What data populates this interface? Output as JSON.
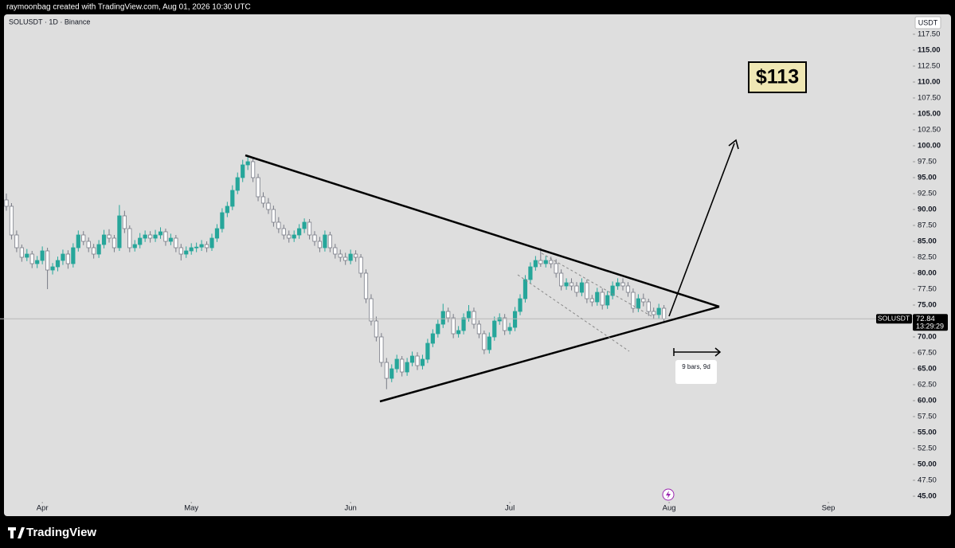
{
  "chart_data": {
    "type": "candlestick",
    "header": "raymoonbag created with TradingView.com, Aug 01, 2026 10:30 UTC",
    "title": "SOLUSDT · 1D · Binance",
    "currency": "USDT",
    "price_tag_symbol": "SOLUSDT",
    "countdown": "13:29:29",
    "target_label": "$113",
    "range_label": "9 bars, 9d",
    "brand": "TradingView",
    "colors": {
      "up": "#26a69a",
      "down": "#ffffff",
      "down_border": "#787b86"
    },
    "xlim": [
      -1.24,
      176.43
    ],
    "xticks": [
      {
        "value": 7,
        "label": "Apr"
      },
      {
        "value": 36,
        "label": "May"
      },
      {
        "value": 67,
        "label": "Jun"
      },
      {
        "value": 98,
        "label": "Jul"
      },
      {
        "value": 129,
        "label": "Aug"
      },
      {
        "value": 160,
        "label": "Sep"
      }
    ],
    "ylim": [
      44.125,
      120.625
    ],
    "yticks": [
      {
        "value": 117.5,
        "label": "117.50"
      },
      {
        "value": 115,
        "label": "115.00"
      },
      {
        "value": 112.5,
        "label": "112.50"
      },
      {
        "value": 110,
        "label": "110.00"
      },
      {
        "value": 107.5,
        "label": "107.50"
      },
      {
        "value": 105,
        "label": "105.00"
      },
      {
        "value": 102.5,
        "label": "102.50"
      },
      {
        "value": 100,
        "label": "100.00"
      },
      {
        "value": 97.5,
        "label": "97.50"
      },
      {
        "value": 95,
        "label": "95.00"
      },
      {
        "value": 92.5,
        "label": "92.50"
      },
      {
        "value": 90,
        "label": "90.00"
      },
      {
        "value": 87.5,
        "label": "87.50"
      },
      {
        "value": 85,
        "label": "85.00"
      },
      {
        "value": 82.5,
        "label": "82.50"
      },
      {
        "value": 80,
        "label": "80.00"
      },
      {
        "value": 77.5,
        "label": "77.50"
      },
      {
        "value": 75,
        "label": "75.00"
      },
      {
        "value": 72.5,
        "label": "72.50"
      },
      {
        "value": 70,
        "label": "70.00"
      },
      {
        "value": 67.5,
        "label": "67.50"
      },
      {
        "value": 65,
        "label": "65.00"
      },
      {
        "value": 62.5,
        "label": "62.50"
      },
      {
        "value": 60,
        "label": "60.00"
      },
      {
        "value": 57.5,
        "label": "57.50"
      },
      {
        "value": 55,
        "label": "55.00"
      },
      {
        "value": 52.5,
        "label": "52.50"
      },
      {
        "value": 50,
        "label": "50.00"
      },
      {
        "value": 47.5,
        "label": "47.50"
      },
      {
        "value": 45,
        "label": "45.00"
      }
    ],
    "candles": [
      [
        91.5,
        92.5,
        89.8,
        90.5
      ],
      [
        90.5,
        91,
        85.3,
        86
      ],
      [
        86,
        86.7,
        83.3,
        84
      ],
      [
        84,
        84.5,
        81.8,
        82.5
      ],
      [
        82.5,
        83.8,
        81.9,
        83
      ],
      [
        83,
        83.5,
        80.8,
        81.5
      ],
      [
        81.5,
        82.7,
        80.8,
        82
      ],
      [
        82,
        84.2,
        81.4,
        83.5
      ],
      [
        83.5,
        84,
        77.5,
        80.5
      ],
      [
        80.5,
        81.6,
        79.8,
        81
      ],
      [
        81,
        82.6,
        80.3,
        82
      ],
      [
        82,
        83.7,
        81.3,
        83
      ],
      [
        83,
        83.6,
        80.7,
        81.5
      ],
      [
        81.5,
        84.7,
        80.9,
        84
      ],
      [
        84,
        86.7,
        83.4,
        86
      ],
      [
        86,
        86.6,
        84.4,
        85
      ],
      [
        85,
        85.6,
        83.3,
        84
      ],
      [
        84,
        84.6,
        82.3,
        83
      ],
      [
        83,
        85.2,
        82.4,
        84.5
      ],
      [
        84.5,
        86.8,
        83.9,
        86
      ],
      [
        86,
        86.9,
        84.8,
        85.5
      ],
      [
        85.5,
        86,
        83.3,
        84
      ],
      [
        84,
        90.7,
        83.5,
        89
      ],
      [
        89,
        89.8,
        86.3,
        87
      ],
      [
        87,
        87.5,
        83.3,
        84
      ],
      [
        84,
        85.2,
        83.4,
        84.5
      ],
      [
        84.5,
        86.3,
        83.9,
        85.5
      ],
      [
        85.5,
        86.7,
        84.9,
        86
      ],
      [
        86,
        86.6,
        84.8,
        85.5
      ],
      [
        85.5,
        86.8,
        84.9,
        86
      ],
      [
        86,
        87.2,
        85.4,
        86.5
      ],
      [
        86.5,
        87,
        84.3,
        85
      ],
      [
        85,
        86.2,
        84.4,
        85.5
      ],
      [
        85.5,
        86,
        83.3,
        84
      ],
      [
        84,
        84.6,
        82,
        83
      ],
      [
        83,
        84.2,
        82.4,
        83.5
      ],
      [
        83.5,
        84.7,
        82.9,
        84
      ],
      [
        84,
        84.8,
        83.3,
        84.1
      ],
      [
        84.1,
        85.2,
        83.5,
        84.5
      ],
      [
        84.5,
        85,
        83.3,
        84
      ],
      [
        84,
        86.2,
        83.5,
        85.5
      ],
      [
        85.5,
        87.7,
        84.9,
        87
      ],
      [
        87,
        90.2,
        86.4,
        89.5
      ],
      [
        89.5,
        91.2,
        88.8,
        90.5
      ],
      [
        90.5,
        93.8,
        89.9,
        93
      ],
      [
        93,
        95.8,
        92.4,
        95
      ],
      [
        95,
        97.8,
        94.3,
        97
      ],
      [
        97,
        98.5,
        96.2,
        97.5
      ],
      [
        97.5,
        98,
        94.3,
        95
      ],
      [
        95,
        95.6,
        91.3,
        92
      ],
      [
        92,
        92.7,
        90.3,
        91
      ],
      [
        91,
        91.8,
        89.3,
        90
      ],
      [
        90,
        90.6,
        87.3,
        88
      ],
      [
        88,
        88.8,
        86.3,
        87
      ],
      [
        87,
        87.6,
        85.3,
        86
      ],
      [
        86,
        86.7,
        84.8,
        85.5
      ],
      [
        85.5,
        86.7,
        84.9,
        86
      ],
      [
        86,
        87.7,
        85.4,
        87
      ],
      [
        87,
        88.6,
        86.3,
        88
      ],
      [
        88,
        88.5,
        85.3,
        86
      ],
      [
        86,
        86.6,
        84.3,
        85
      ],
      [
        85,
        85.7,
        83.3,
        84
      ],
      [
        84,
        86.7,
        83.4,
        86
      ],
      [
        86,
        86.5,
        83.3,
        84
      ],
      [
        84,
        84.6,
        82.3,
        83
      ],
      [
        83,
        83.7,
        81.8,
        82.5
      ],
      [
        82.5,
        83.2,
        81.3,
        82
      ],
      [
        82,
        83.7,
        81.4,
        83
      ],
      [
        83,
        83.6,
        81.8,
        82.5
      ],
      [
        82.5,
        83,
        79.3,
        80
      ],
      [
        80,
        80.6,
        75.3,
        76
      ],
      [
        76,
        76.7,
        71.8,
        72.5
      ],
      [
        72.5,
        73.2,
        69.3,
        70
      ],
      [
        70,
        70.6,
        65.3,
        66
      ],
      [
        66,
        66.7,
        61.8,
        63.5
      ],
      [
        63.5,
        65.7,
        62.9,
        65
      ],
      [
        65,
        67.2,
        64.4,
        66.5
      ],
      [
        66.5,
        67,
        63.8,
        64.5
      ],
      [
        64.5,
        66.7,
        63.9,
        66
      ],
      [
        66,
        67.7,
        65.4,
        67
      ],
      [
        67,
        67.6,
        64.8,
        65.5
      ],
      [
        65.5,
        67.2,
        64.9,
        66.5
      ],
      [
        66.5,
        69.7,
        65.9,
        69
      ],
      [
        69,
        71.2,
        68.4,
        70.5
      ],
      [
        70.5,
        72.7,
        69.9,
        72
      ],
      [
        72,
        75.2,
        71.4,
        74
      ],
      [
        74,
        74.6,
        72.3,
        73
      ],
      [
        73,
        73.6,
        69.8,
        70.5
      ],
      [
        70.5,
        71.7,
        69.9,
        71
      ],
      [
        71,
        73.7,
        70.4,
        73
      ],
      [
        73,
        75,
        72.4,
        74
      ],
      [
        74,
        74.6,
        71.3,
        72
      ],
      [
        72,
        72.6,
        69.8,
        70.5
      ],
      [
        70.5,
        71,
        67.3,
        68
      ],
      [
        68,
        70.7,
        67.4,
        70
      ],
      [
        70,
        73.2,
        69.4,
        72.5
      ],
      [
        72.5,
        73.7,
        71.9,
        73
      ],
      [
        73,
        73.6,
        70.3,
        71
      ],
      [
        71,
        72.2,
        70.4,
        71.5
      ],
      [
        71.5,
        74.7,
        70.9,
        74
      ],
      [
        74,
        76.7,
        73.4,
        76
      ],
      [
        76,
        79.7,
        75.4,
        79
      ],
      [
        79,
        81.7,
        78.4,
        81
      ],
      [
        81,
        82.7,
        80.4,
        82
      ],
      [
        82,
        84,
        81,
        81.5
      ],
      [
        81.5,
        82.7,
        80.9,
        82
      ],
      [
        82,
        82.6,
        80.8,
        81.5
      ],
      [
        81.5,
        82.2,
        79.3,
        80
      ],
      [
        80,
        80.6,
        77.3,
        78
      ],
      [
        78,
        79.2,
        77.4,
        78.5
      ],
      [
        78.5,
        79.2,
        77.3,
        78
      ],
      [
        78,
        78.6,
        76.3,
        77
      ],
      [
        77,
        79.2,
        76.4,
        78.5
      ],
      [
        78.5,
        79,
        75.3,
        76
      ],
      [
        76,
        76.6,
        74.8,
        75.5
      ],
      [
        75.5,
        77.7,
        74.9,
        77
      ],
      [
        77,
        77.6,
        74.3,
        75
      ],
      [
        75,
        77.2,
        74.4,
        76.5
      ],
      [
        76.5,
        78.7,
        75.9,
        78
      ],
      [
        78,
        79.2,
        77.4,
        78.5
      ],
      [
        78.5,
        79.2,
        77.3,
        78
      ],
      [
        78,
        78.6,
        76.3,
        77
      ],
      [
        77,
        77.6,
        73.8,
        74.5
      ],
      [
        74.5,
        76.7,
        73.9,
        76
      ],
      [
        76,
        76.8,
        74.8,
        75.5
      ],
      [
        75.5,
        76,
        73.3,
        74
      ],
      [
        74,
        74.6,
        72.8,
        73.5
      ],
      [
        73.5,
        75.2,
        72.9,
        74.5
      ],
      [
        74.5,
        75,
        72.3,
        72.84
      ]
    ]
  }
}
